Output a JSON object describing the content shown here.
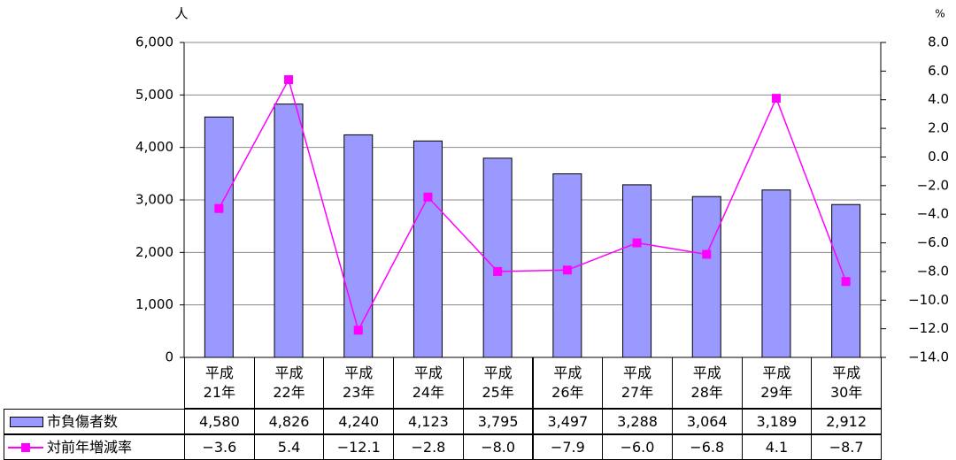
{
  "chart_data": {
    "type": "bar-line",
    "ylabel": "人",
    "y2label": "%",
    "categories": [
      "平成\n21年",
      "平成\n22年",
      "平成\n23年",
      "平成\n24年",
      "平成\n25年",
      "平成\n26年",
      "平成\n27年",
      "平成\n28年",
      "平成\n29年",
      "平成\n30年"
    ],
    "series": [
      {
        "name": "市負傷者数",
        "type": "bar",
        "color": "#9999ff",
        "values": [
          4580,
          4826,
          4240,
          4123,
          3795,
          3497,
          3288,
          3064,
          3189,
          2912
        ],
        "value_labels": [
          "4,580",
          "4,826",
          "4,240",
          "4,123",
          "3,795",
          "3,497",
          "3,288",
          "3,064",
          "3,189",
          "2,912"
        ]
      },
      {
        "name": "対前年増減率",
        "type": "line",
        "axis": "y2",
        "color": "#ff00ff",
        "values": [
          -3.6,
          5.4,
          -12.1,
          -2.8,
          -8.0,
          -7.9,
          -6.0,
          -6.8,
          4.1,
          -8.7
        ],
        "value_labels": [
          "−3.6",
          "5.4",
          "−12.1",
          "−2.8",
          "−8.0",
          "−7.9",
          "−6.0",
          "−6.8",
          "4.1",
          "−8.7"
        ]
      }
    ],
    "ylim": [
      0,
      6000
    ],
    "yticks": [
      0,
      {
        "value": 1000,
        "label": "1,000"
      },
      {
        "value": 2000,
        "label": "2,000"
      },
      {
        "value": 3000,
        "label": "3,000"
      },
      {
        "value": 4000,
        "label": "4,000"
      },
      {
        "value": 5000,
        "label": "5,000"
      },
      {
        "value": 6000,
        "label": "6,000"
      }
    ],
    "y2lim": [
      -14,
      8
    ],
    "y2ticks": [
      {
        "value": -14,
        "label": "−14.0"
      },
      {
        "value": -12,
        "label": "−12.0"
      },
      {
        "value": -10,
        "label": "−10.0"
      },
      {
        "value": -8,
        "label": "−8.0"
      },
      {
        "value": -6,
        "label": "−6.0"
      },
      {
        "value": -4,
        "label": "−4.0"
      },
      {
        "value": -2,
        "label": "−2.0"
      },
      {
        "value": 0,
        "label": "0.0"
      },
      {
        "value": 2,
        "label": "2.0"
      },
      {
        "value": 4,
        "label": "4.0"
      },
      {
        "value": 6,
        "label": "6.0"
      },
      {
        "value": 8,
        "label": "8.0"
      }
    ],
    "grid": true
  }
}
